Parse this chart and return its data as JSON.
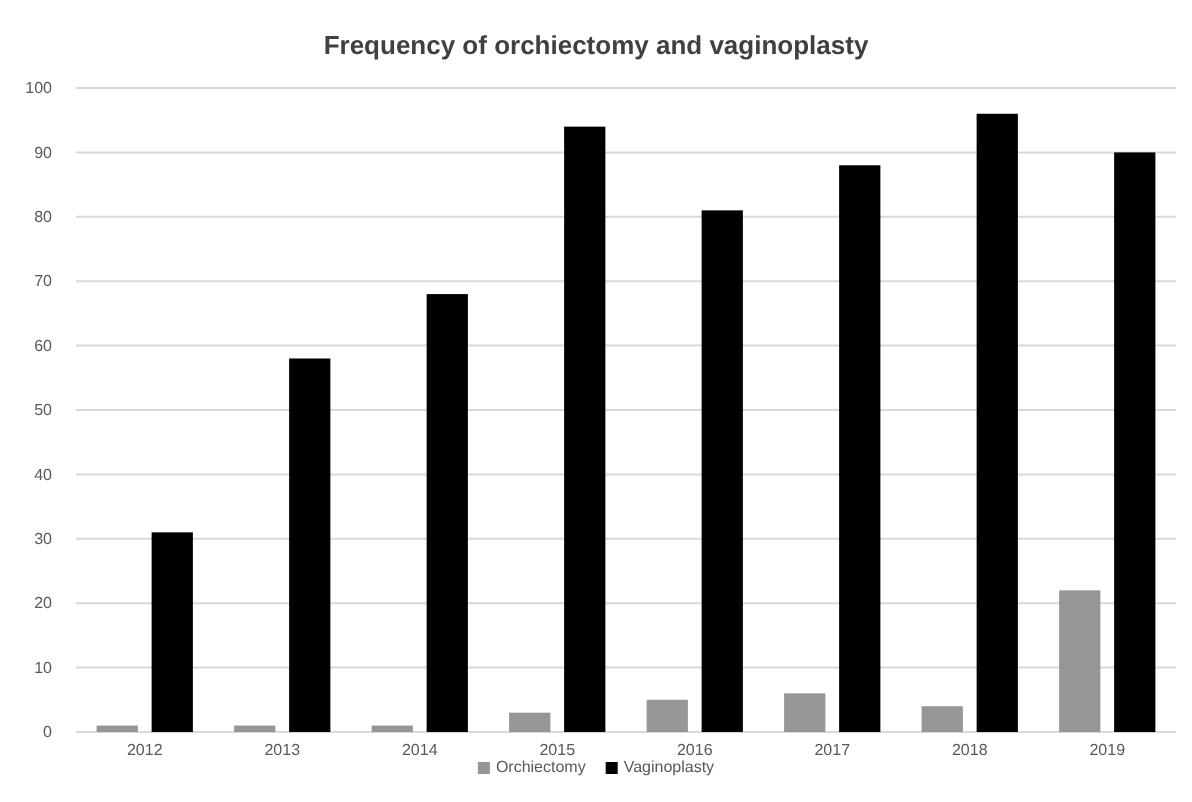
{
  "chart_data": {
    "type": "bar",
    "title": "Frequency of orchiectomy and vaginoplasty",
    "categories": [
      "2012",
      "2013",
      "2014",
      "2015",
      "2016",
      "2017",
      "2018",
      "2019"
    ],
    "series": [
      {
        "name": "Orchiectomy",
        "color": "#969696",
        "values": [
          1,
          1,
          1,
          3,
          5,
          6,
          4,
          22
        ]
      },
      {
        "name": "Vaginoplasty",
        "color": "#000000",
        "values": [
          31,
          58,
          68,
          94,
          81,
          88,
          96,
          90
        ]
      }
    ],
    "ylim": [
      0,
      100
    ],
    "yticks": [
      0,
      10,
      20,
      30,
      40,
      50,
      60,
      70,
      80,
      90,
      100
    ],
    "grid": "y",
    "legend": "bottom"
  }
}
